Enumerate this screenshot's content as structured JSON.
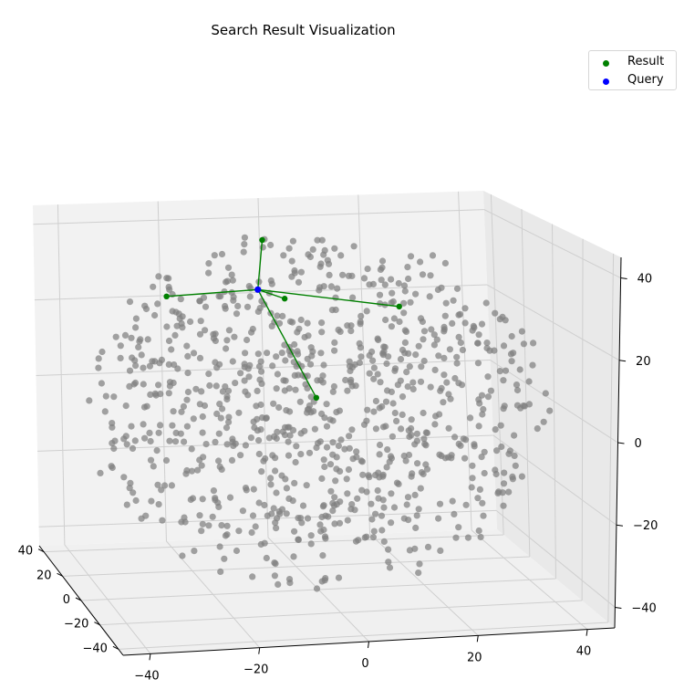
{
  "chart_data": {
    "type": "scatter",
    "title": "Search Result Visualization",
    "dimensions": 3,
    "xlim": [
      -45,
      45
    ],
    "ylim": [
      -45,
      45
    ],
    "zlim": [
      -45,
      45
    ],
    "x_ticks": [
      -40,
      -20,
      0,
      20,
      40
    ],
    "y_ticks": [
      -40,
      -20,
      0,
      20,
      40
    ],
    "z_ticks": [
      -40,
      -20,
      0,
      20,
      40
    ],
    "x_tick_labels": [
      "−40",
      "−20",
      "0",
      "20",
      "40"
    ],
    "y_tick_labels": [
      "−40",
      "−20",
      "0",
      "20",
      "40"
    ],
    "z_tick_labels": [
      "−40",
      "−20",
      "0",
      "20",
      "40"
    ],
    "grid": true,
    "legend_position": "top-right",
    "background_points": {
      "count": 900,
      "distribution": "uniform within a sphere of radius ~45 centred on the origin",
      "color": "#808080"
    },
    "series": [
      {
        "name": "Result",
        "color": "#008000",
        "points": [
          [
            -10,
            -20,
            30
          ],
          [
            -26,
            10,
            26
          ],
          [
            14,
            -8,
            26
          ],
          [
            -6,
            -28,
            8
          ],
          [
            -8,
            8,
            40
          ]
        ]
      },
      {
        "name": "Query",
        "color": "#0000ff",
        "points": [
          [
            -12,
            -6,
            30
          ]
        ]
      }
    ],
    "connector_color": "#008000"
  },
  "colors": {
    "background_point": "#808080",
    "result": "#008000",
    "query": "#0000ff",
    "pane": "#f2f2f2",
    "grid": "#cfcfcf"
  }
}
